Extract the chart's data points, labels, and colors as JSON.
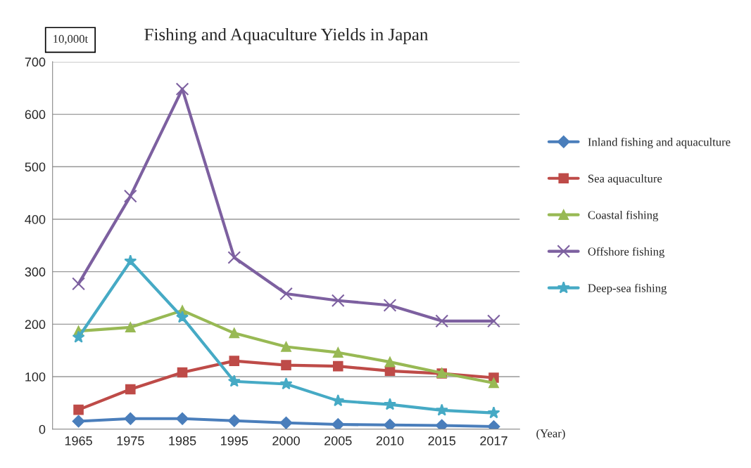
{
  "chart_data": {
    "type": "line",
    "title": "Fishing and Aquaculture Yields in Japan",
    "ylabel": "10,000t",
    "xlabel": "(Year)",
    "categories": [
      "1965",
      "1975",
      "1985",
      "1995",
      "2000",
      "2005",
      "2010",
      "2015",
      "2017"
    ],
    "series": [
      {
        "name": "Inland fishing and aquaculture",
        "color": "#4a7ebb",
        "marker": "diamond",
        "values": [
          15,
          20,
          20,
          16,
          12,
          9,
          8,
          7,
          5
        ]
      },
      {
        "name": "Sea aquaculture",
        "color": "#be4b48",
        "marker": "square",
        "values": [
          37,
          76,
          108,
          130,
          122,
          120,
          111,
          106,
          98
        ]
      },
      {
        "name": "Coastal fishing",
        "color": "#98b954",
        "marker": "triangle",
        "values": [
          187,
          194,
          226,
          183,
          157,
          146,
          128,
          107,
          88
        ]
      },
      {
        "name": "Offshore fishing",
        "color": "#7d60a0",
        "marker": "cross",
        "values": [
          277,
          444,
          648,
          327,
          258,
          245,
          236,
          206,
          206
        ]
      },
      {
        "name": "Deep-sea fishing",
        "color": "#46aac5",
        "marker": "star",
        "values": [
          175,
          320,
          213,
          91,
          86,
          54,
          47,
          36,
          31
        ]
      }
    ],
    "ylim": [
      0,
      700
    ],
    "yticks": [
      0,
      100,
      200,
      300,
      400,
      500,
      600,
      700
    ],
    "grid": "y",
    "legend": "right",
    "line_style": "solid"
  }
}
